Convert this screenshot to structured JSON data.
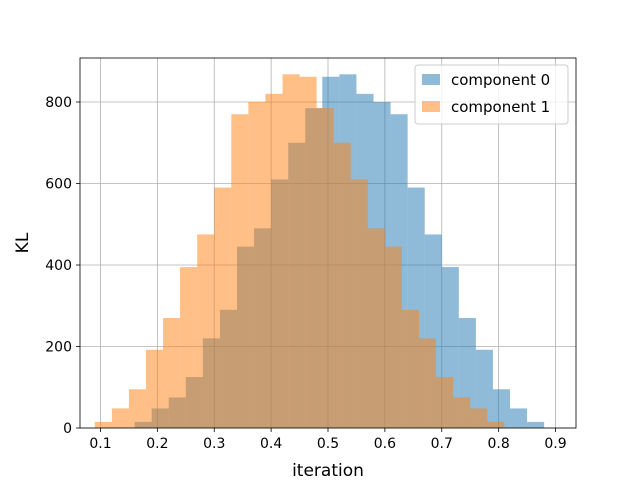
{
  "chart_data": {
    "type": "bar",
    "subtype": "overlapping-histogram",
    "title": "",
    "xlabel": "iteration",
    "ylabel": "KL",
    "xlim": [
      0.064,
      0.936
    ],
    "ylim": [
      0,
      908
    ],
    "xticks": [
      "0.1",
      "0.2",
      "0.3",
      "0.4",
      "0.5",
      "0.6",
      "0.7",
      "0.8",
      "0.9"
    ],
    "yticks": [
      "0",
      "200",
      "400",
      "600",
      "800"
    ],
    "grid": true,
    "legend_position": "top-right",
    "series": [
      {
        "name": "component 0",
        "color": "#1f77b4",
        "alpha": 0.5,
        "bin_edges": [
          0.1,
          0.13,
          0.16,
          0.19,
          0.22,
          0.25,
          0.28,
          0.31,
          0.34,
          0.37,
          0.4,
          0.43,
          0.46,
          0.49,
          0.52,
          0.55,
          0.58,
          0.61,
          0.64,
          0.67,
          0.7,
          0.73,
          0.76,
          0.79,
          0.82,
          0.85,
          0.88,
          0.91
        ],
        "values": [
          0,
          0,
          15,
          48,
          75,
          125,
          220,
          290,
          445,
          490,
          610,
          700,
          785,
          862,
          868,
          820,
          800,
          770,
          590,
          475,
          395,
          270,
          192,
          95,
          48,
          15,
          0
        ]
      },
      {
        "name": "component 1",
        "color": "#ff7f0e",
        "alpha": 0.5,
        "bin_edges": [
          0.09,
          0.12,
          0.15,
          0.18,
          0.21,
          0.24,
          0.27,
          0.3,
          0.33,
          0.36,
          0.39,
          0.42,
          0.45,
          0.48,
          0.51,
          0.54,
          0.57,
          0.6,
          0.63,
          0.66,
          0.69,
          0.72,
          0.75,
          0.78,
          0.81,
          0.84,
          0.87,
          0.9
        ],
        "values": [
          15,
          48,
          95,
          192,
          270,
          395,
          475,
          590,
          770,
          800,
          820,
          868,
          862,
          785,
          700,
          610,
          490,
          445,
          290,
          220,
          125,
          75,
          48,
          15,
          0,
          0,
          0
        ]
      }
    ]
  }
}
